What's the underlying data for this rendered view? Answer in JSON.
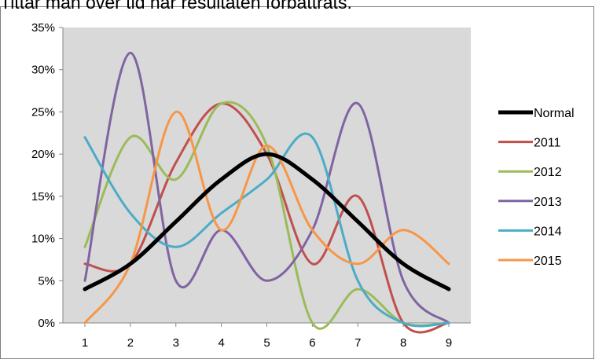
{
  "caption": "Tittar man över tid har resultaten förbättrats.",
  "chart_data": {
    "type": "line",
    "title": "",
    "xlabel": "",
    "ylabel": "",
    "x": [
      1,
      2,
      3,
      4,
      5,
      6,
      7,
      8,
      9
    ],
    "x_tick_labels": [
      "1",
      "2",
      "3",
      "4",
      "5",
      "6",
      "7",
      "8",
      "9"
    ],
    "y_tick_labels": [
      "0%",
      "5%",
      "10%",
      "15%",
      "20%",
      "25%",
      "30%",
      "35%"
    ],
    "ylim": [
      0,
      35
    ],
    "grid": false,
    "smooth": true,
    "plot_background": "#d9d9d9",
    "legend_position": "right",
    "series": [
      {
        "name": "Normal",
        "color": "#000000",
        "width": 5,
        "values": [
          4,
          7,
          12,
          17,
          20,
          17,
          12,
          7,
          4
        ]
      },
      {
        "name": "2011",
        "color": "#c0504d",
        "width": 3,
        "values": [
          7,
          7,
          19,
          26,
          20,
          7,
          15,
          0,
          0
        ]
      },
      {
        "name": "2012",
        "color": "#9bbb59",
        "width": 3,
        "values": [
          9,
          22,
          17,
          26,
          21,
          0,
          4,
          0,
          0
        ]
      },
      {
        "name": "2013",
        "color": "#8064a2",
        "width": 3,
        "values": [
          5,
          32,
          5,
          11,
          5,
          11,
          26,
          5,
          0
        ]
      },
      {
        "name": "2014",
        "color": "#4bacc6",
        "width": 3,
        "values": [
          22,
          13,
          9,
          13,
          17,
          22,
          5,
          0,
          0
        ]
      },
      {
        "name": "2015",
        "color": "#f79646",
        "width": 3,
        "values": [
          0,
          7,
          25,
          11,
          21,
          11,
          7,
          11,
          7
        ]
      }
    ]
  }
}
